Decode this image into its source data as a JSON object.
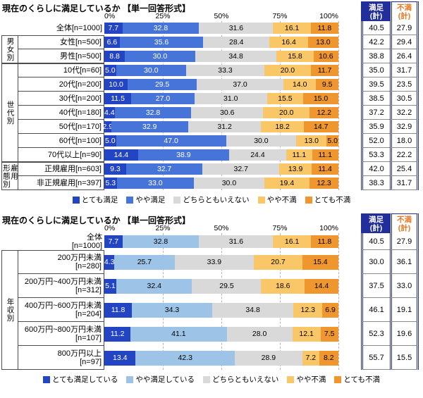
{
  "styles": {
    "accent_navy": "#222e99",
    "dissatisfied_header_color": "#e87722",
    "grid_color": "#b5b5b5",
    "box_border": "#4d4d4d",
    "background": "#ffffff"
  },
  "chart_data": [
    {
      "type": "bar",
      "variant": "horizontal-stacked-100pct",
      "title": "現在のくらしに満足しているか 【単一回答形式】",
      "axis": {
        "min": 0,
        "max": 100,
        "unit": "%",
        "ticks": [
          "0%",
          "25%",
          "50%",
          "75%",
          "100%"
        ]
      },
      "grid": "dashed-vertical-quartiles",
      "legend_position": "bottom",
      "summary_headers": [
        {
          "id": "sat",
          "label": "満足\n(計)"
        },
        {
          "id": "dis",
          "label": "不満\n(計)"
        }
      ],
      "series": [
        {
          "name": "とても満足",
          "color": "#2445c3",
          "text_color": "#ffffff"
        },
        {
          "name": "やや満足",
          "color": "#4674d9",
          "text_color": "#ffffff"
        },
        {
          "name": "どちらともいえない",
          "color": "#d9d9d9",
          "text_color": "#000000"
        },
        {
          "name": "やや不満",
          "color": "#fac768",
          "text_color": "#000000"
        },
        {
          "name": "とても不満",
          "color": "#f0962e",
          "text_color": "#000000"
        }
      ],
      "groups": [
        {
          "label": "",
          "rows": [
            {
              "label": "全体[n=1000]",
              "values": [
                7.7,
                32.8,
                31.6,
                16.1,
                11.8
              ],
              "sat": "40.5",
              "dis": "27.9"
            }
          ]
        },
        {
          "label": "男女別",
          "rows": [
            {
              "label": "女性[n=500]",
              "values": [
                6.6,
                35.6,
                28.4,
                16.4,
                13.0
              ],
              "sat": "42.2",
              "dis": "29.4"
            },
            {
              "label": "男性[n=500]",
              "values": [
                8.8,
                30.0,
                34.8,
                15.8,
                10.6
              ],
              "sat": "38.8",
              "dis": "26.4"
            }
          ]
        },
        {
          "label": "世代別",
          "rows": [
            {
              "label": "10代[n=60]",
              "values": [
                5.0,
                30.0,
                33.3,
                20.0,
                11.7
              ],
              "sat": "35.0",
              "dis": "31.7"
            },
            {
              "label": "20代[n=200]",
              "values": [
                10.0,
                29.5,
                37.0,
                14.0,
                9.5
              ],
              "sat": "39.5",
              "dis": "23.5"
            },
            {
              "label": "30代[n=200]",
              "values": [
                11.5,
                27.0,
                31.0,
                15.5,
                15.0
              ],
              "sat": "38.5",
              "dis": "30.5"
            },
            {
              "label": "40代[n=180]",
              "values": [
                4.4,
                32.8,
                30.6,
                20.0,
                12.2
              ],
              "sat": "37.2",
              "dis": "32.2"
            },
            {
              "label": "50代[n=170]",
              "values": [
                2.9,
                32.9,
                31.2,
                18.2,
                14.7
              ],
              "sat": "35.9",
              "dis": "32.9"
            },
            {
              "label": "60代[n=100]",
              "values": [
                5.0,
                47.0,
                30.0,
                13.0,
                5.0
              ],
              "sat": "52.0",
              "dis": "18.0"
            },
            {
              "label": "70代以上[n=90]",
              "values": [
                14.4,
                38.9,
                24.4,
                11.1,
                11.1
              ],
              "sat": "53.3",
              "dis": "22.2"
            }
          ]
        },
        {
          "label": "雇用\n形態別",
          "rows": [
            {
              "label": "正規雇用[n=603]",
              "values": [
                9.3,
                32.7,
                32.7,
                13.9,
                11.4
              ],
              "sat": "42.0",
              "dis": "25.4"
            },
            {
              "label": "非正規雇用[n=397]",
              "values": [
                5.3,
                33.0,
                30.0,
                19.4,
                12.3
              ],
              "sat": "38.3",
              "dis": "31.7"
            }
          ]
        }
      ]
    },
    {
      "type": "bar",
      "variant": "horizontal-stacked-100pct",
      "title": "現在のくらしに満足しているか 【単一回答形式】",
      "axis": {
        "min": 0,
        "max": 100,
        "unit": "%",
        "ticks": [
          "0%",
          "25%",
          "50%",
          "75%",
          "100%"
        ]
      },
      "grid": "dashed-vertical-quartiles",
      "legend_position": "bottom",
      "summary_headers": [
        {
          "id": "sat",
          "label": "満足\n(計)"
        },
        {
          "id": "dis",
          "label": "不満\n(計)"
        }
      ],
      "series": [
        {
          "name": "とても満足している",
          "color": "#2445c3",
          "text_color": "#ffffff"
        },
        {
          "name": "やや満足している",
          "color": "#9dc3e6",
          "text_color": "#000000"
        },
        {
          "name": "どちらともいえない",
          "color": "#d9d9d9",
          "text_color": "#000000"
        },
        {
          "name": "やや不満",
          "color": "#fac768",
          "text_color": "#000000"
        },
        {
          "name": "とても不満",
          "color": "#f0962e",
          "text_color": "#000000"
        }
      ],
      "groups": [
        {
          "label": "",
          "rows": [
            {
              "label": "全体\n[n=1000]",
              "values": [
                7.7,
                32.8,
                31.6,
                16.1,
                11.8
              ],
              "sat": "40.5",
              "dis": "27.9"
            }
          ]
        },
        {
          "label": "年収別",
          "rows": [
            {
              "label": "200万円未満\n[n=280]",
              "values": [
                4.3,
                25.7,
                33.9,
                20.7,
                15.4
              ],
              "sat": "30.0",
              "dis": "36.1"
            },
            {
              "label": "200万円~400万円未満\n[n=312]",
              "values": [
                5.1,
                32.4,
                29.5,
                18.6,
                14.4
              ],
              "sat": "37.5",
              "dis": "33.0"
            },
            {
              "label": "400万円~600万円未満\n[n=204]",
              "values": [
                11.8,
                34.3,
                34.8,
                12.3,
                6.9
              ],
              "sat": "46.1",
              "dis": "19.1"
            },
            {
              "label": "600万円~800万円未満\n[n=107]",
              "values": [
                11.2,
                41.1,
                28.0,
                12.1,
                7.5
              ],
              "sat": "52.3",
              "dis": "19.6"
            },
            {
              "label": "800万円以上\n[n=97]",
              "values": [
                13.4,
                42.3,
                28.9,
                7.2,
                8.2
              ],
              "sat": "55.7",
              "dis": "15.5"
            }
          ]
        }
      ]
    }
  ]
}
